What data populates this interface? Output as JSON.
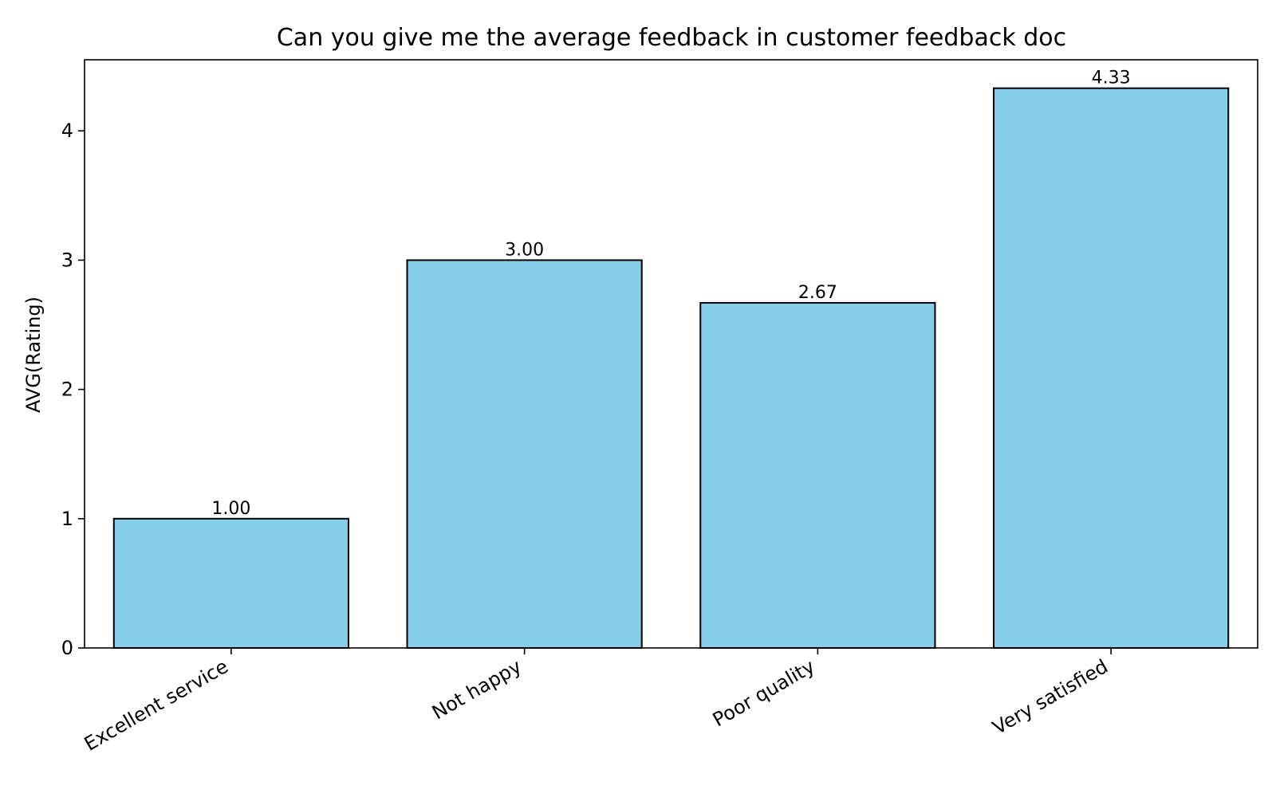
{
  "chart_data": {
    "type": "bar",
    "title": "Can you give me the average feedback in customer feedback doc",
    "xlabel": "",
    "ylabel": "AVG(Rating)",
    "categories": [
      "Excellent service",
      "Not happy",
      "Poor quality",
      "Very satisfied"
    ],
    "values": [
      1.0,
      3.0,
      2.67,
      4.33
    ],
    "value_labels": [
      "1.00",
      "3.00",
      "2.67",
      "4.33"
    ],
    "ylim": [
      0,
      4.55
    ],
    "yticks": [
      0,
      1,
      2,
      3,
      4
    ],
    "ytick_labels": [
      "0",
      "1",
      "2",
      "3",
      "4"
    ],
    "grid": false,
    "colors": {
      "bar_fill": "#87CEEB",
      "bar_edge": "#000000"
    }
  }
}
